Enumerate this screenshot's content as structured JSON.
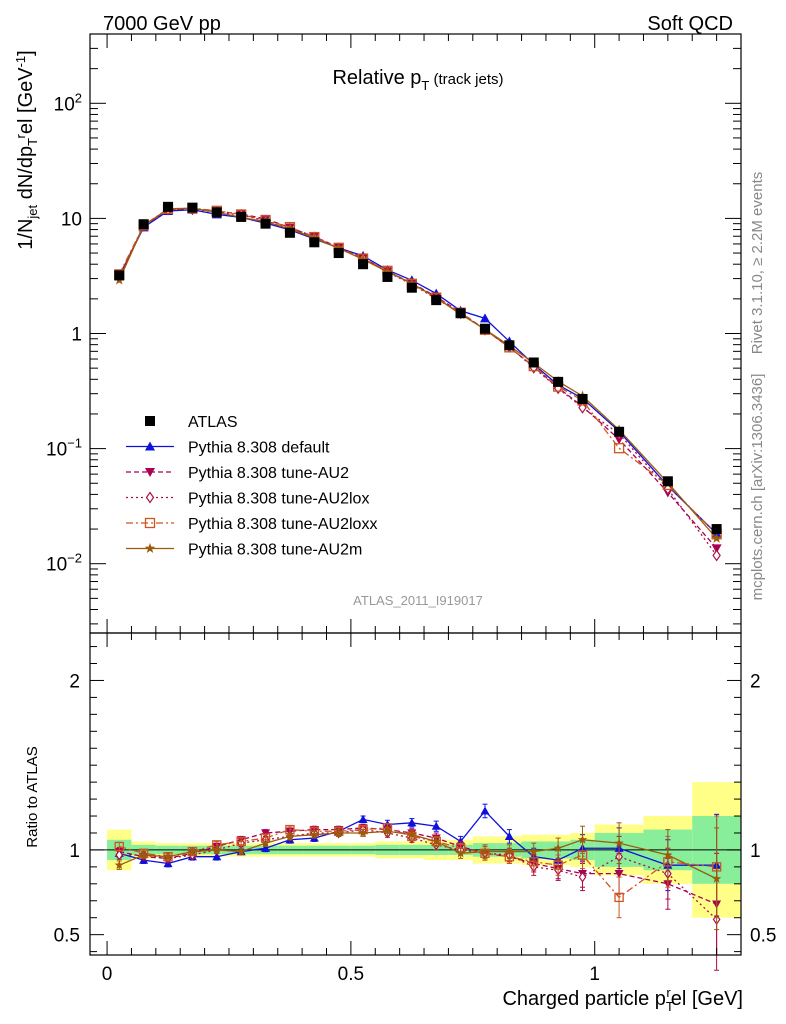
{
  "header": {
    "left": "7000 GeV pp",
    "right": "Soft QCD"
  },
  "side": {
    "rivet": "Rivet 3.1.10, ≥ 2.2M events",
    "mcplots": "mcplots.cern.ch [arXiv:1306.3436]"
  },
  "chart_data": {
    "type": "scatter",
    "title": "Relative p_T (track jets)",
    "analysis_label": "ATLAS_2011_I919017",
    "xlabel": "Charged particle p_T^rel [GeV]",
    "ylabel": "1/N_jet dN/dp_T^rel [GeV^-1]",
    "ratio_ylabel": "Ratio to ATLAS",
    "xlim": [
      -0.035,
      1.3
    ],
    "ylim": [
      0.0025,
      400
    ],
    "yscale": "log",
    "ratio_ylim": [
      0.38,
      2.28
    ],
    "x_ticks": [
      "0",
      "0.5",
      "1"
    ],
    "y_ticks": [
      "10^-2",
      "10^-1",
      "1",
      "10",
      "10^2"
    ],
    "ratio_ticks": [
      "0.5",
      "1",
      "2"
    ],
    "legend_position": "lower-left",
    "x": [
      0.025,
      0.075,
      0.125,
      0.175,
      0.225,
      0.275,
      0.325,
      0.375,
      0.425,
      0.475,
      0.525,
      0.575,
      0.625,
      0.675,
      0.725,
      0.775,
      0.825,
      0.875,
      0.925,
      0.975,
      1.05,
      1.15,
      1.25
    ],
    "data": {
      "name": "ATLAS",
      "y": [
        3.2,
        8.9,
        12.6,
        12.4,
        11.3,
        10.3,
        9.0,
        7.5,
        6.2,
        5.0,
        4.0,
        3.1,
        2.5,
        1.95,
        1.5,
        1.1,
        0.79,
        0.56,
        0.38,
        0.27,
        0.14,
        0.052,
        0.02
      ]
    },
    "series": [
      {
        "name": "Pythia 8.308 default",
        "color": "#1010dd",
        "dash": "",
        "marker": "triangle-up",
        "ratio": [
          0.98,
          0.94,
          0.92,
          0.96,
          0.96,
          0.99,
          1.01,
          1.06,
          1.07,
          1.11,
          1.18,
          1.15,
          1.16,
          1.14,
          1.05,
          1.23,
          1.08,
          0.96,
          0.94,
          1.01,
          1.01,
          0.91,
          0.91
        ]
      },
      {
        "name": "Pythia 8.308 tune-AU2",
        "color": "#aa0055",
        "dash": "5,3",
        "marker": "triangle-down",
        "ratio": [
          0.99,
          0.96,
          0.95,
          0.98,
          1.02,
          1.06,
          1.1,
          1.11,
          1.12,
          1.12,
          1.13,
          1.12,
          1.1,
          1.07,
          1.02,
          0.98,
          0.96,
          0.92,
          0.89,
          0.86,
          0.86,
          0.8,
          0.68
        ]
      },
      {
        "name": "Pythia 8.308 tune-AU2lox",
        "color": "#aa1144",
        "dash": "2,3",
        "marker": "diamond",
        "ratio": [
          0.97,
          0.97,
          0.95,
          0.97,
          1.0,
          1.04,
          1.06,
          1.08,
          1.1,
          1.1,
          1.12,
          1.1,
          1.07,
          1.03,
          1.0,
          0.98,
          0.97,
          0.9,
          0.88,
          0.84,
          0.96,
          0.86,
          0.59
        ]
      },
      {
        "name": "Pythia 8.308 tune-AU2loxx",
        "color": "#cc5522",
        "dash": "7,3,2,3",
        "marker": "square-open",
        "ratio": [
          1.02,
          0.98,
          0.96,
          0.99,
          1.03,
          1.05,
          1.07,
          1.12,
          1.11,
          1.11,
          1.12,
          1.13,
          1.08,
          1.05,
          1.01,
          0.98,
          0.96,
          0.93,
          0.91,
          0.97,
          0.72,
          0.93,
          0.9
        ]
      },
      {
        "name": "Pythia 8.308 tune-AU2m",
        "color": "#9c5b0c",
        "dash": "",
        "marker": "star",
        "ratio": [
          0.91,
          0.97,
          0.96,
          0.99,
          1.0,
          0.99,
          1.04,
          1.08,
          1.09,
          1.1,
          1.1,
          1.11,
          1.09,
          1.05,
          0.98,
          0.99,
          0.99,
          0.99,
          1.01,
          1.06,
          1.04,
          0.97,
          0.83
        ]
      }
    ],
    "ratio_errors": [
      0.025,
      0.02,
      0.02,
      0.02,
      0.02,
      0.02,
      0.02,
      0.02,
      0.02,
      0.02,
      0.02,
      0.025,
      0.025,
      0.03,
      0.03,
      0.04,
      0.04,
      0.05,
      0.06,
      0.08,
      0.12,
      0.15,
      0.3
    ],
    "data_bands": {
      "edges": [
        0.0,
        0.05,
        0.1,
        0.15,
        0.2,
        0.25,
        0.3,
        0.35,
        0.4,
        0.45,
        0.5,
        0.55,
        0.6,
        0.65,
        0.7,
        0.75,
        0.8,
        0.85,
        0.9,
        0.95,
        1.0,
        1.1,
        1.2,
        1.3
      ],
      "inner": [
        0.06,
        0.03,
        0.025,
        0.025,
        0.025,
        0.025,
        0.025,
        0.025,
        0.025,
        0.025,
        0.025,
        0.03,
        0.03,
        0.03,
        0.03,
        0.04,
        0.04,
        0.05,
        0.05,
        0.06,
        0.1,
        0.12,
        0.2
      ],
      "outer": [
        0.12,
        0.05,
        0.04,
        0.04,
        0.04,
        0.04,
        0.04,
        0.04,
        0.04,
        0.04,
        0.04,
        0.05,
        0.05,
        0.06,
        0.06,
        0.08,
        0.08,
        0.09,
        0.09,
        0.1,
        0.15,
        0.2,
        0.4
      ]
    },
    "colors": {
      "data": "#000000",
      "band_inner": "#88ee99",
      "band_outer": "#ffff88",
      "frame": "#000000",
      "side_text": "#888888"
    }
  }
}
